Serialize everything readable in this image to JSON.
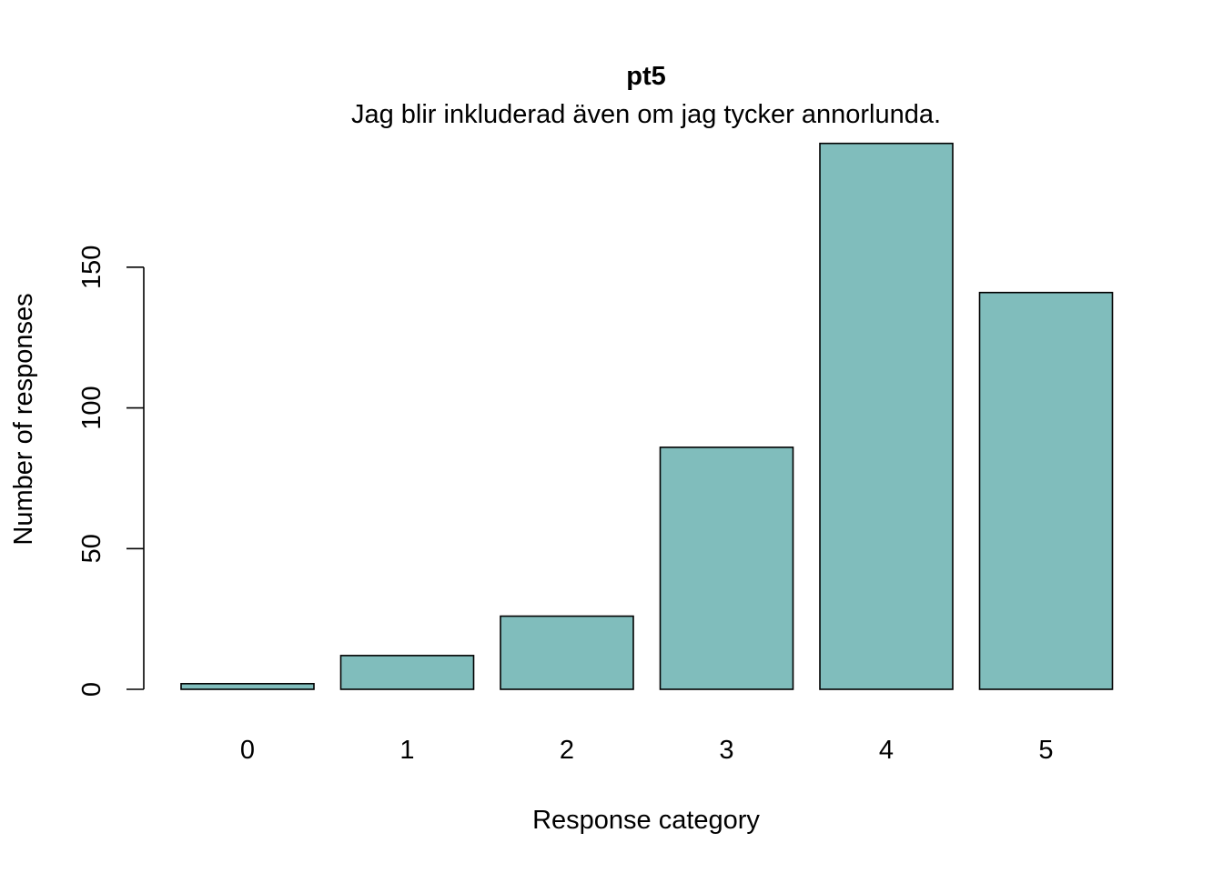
{
  "chart_data": {
    "type": "bar",
    "title": "pt5",
    "subtitle": "Jag blir inkluderad även om jag tycker annorlunda.",
    "xlabel": "Response category",
    "ylabel": "Number of responses",
    "categories": [
      "0",
      "1",
      "2",
      "3",
      "4",
      "5"
    ],
    "values": [
      2,
      12,
      26,
      86,
      194,
      141
    ],
    "ylim": [
      0,
      194
    ],
    "yticks": [
      0,
      50,
      100,
      150
    ],
    "ytick_labels": [
      "0",
      "50",
      "100",
      "150"
    ],
    "bar_color": "#80BDBC",
    "grid": false,
    "legend": "none"
  }
}
